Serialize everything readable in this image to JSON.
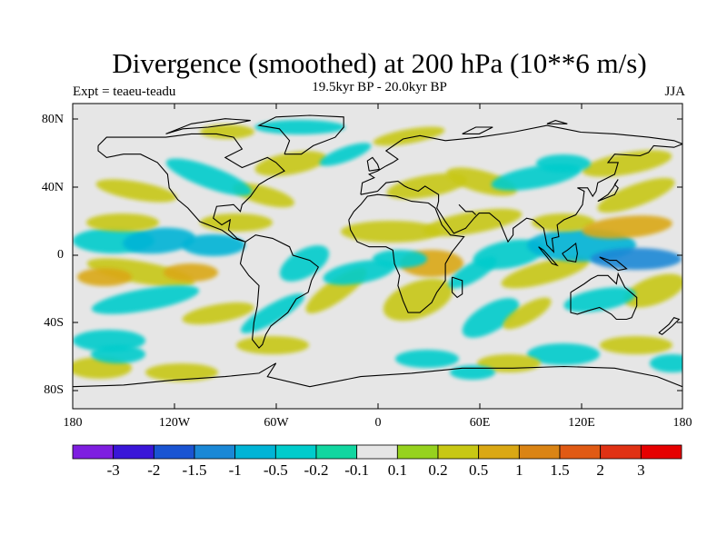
{
  "title": "Divergence (smoothed) at 200 hPa (10**6 m/s)",
  "subtitle_left": "Expt = teaeu-teadu",
  "subtitle_center": "19.5kyr BP - 20.0kyr BP",
  "subtitle_right": "JJA",
  "lat_labels": [
    "80N",
    "40N",
    "0",
    "40S",
    "80S"
  ],
  "lon_labels": [
    "180",
    "120W",
    "60W",
    "0",
    "60E",
    "120E",
    "180"
  ],
  "colorbar": {
    "labels": [
      "-3",
      "-2",
      "-1.5",
      "-1",
      "-0.5",
      "-0.2",
      "-0.1",
      "0.1",
      "0.2",
      "0.5",
      "1",
      "1.5",
      "2",
      "3"
    ],
    "colors": [
      "#7e1ee0",
      "#3a16d8",
      "#1a54d2",
      "#1a88d6",
      "#00b4d6",
      "#00cccc",
      "#11d6a0",
      "#e6e6e6",
      "#96d21e",
      "#c8c814",
      "#daa814",
      "#da8414",
      "#e05a14",
      "#e03214",
      "#e60000"
    ]
  },
  "map_background": "#e6e6e6"
}
